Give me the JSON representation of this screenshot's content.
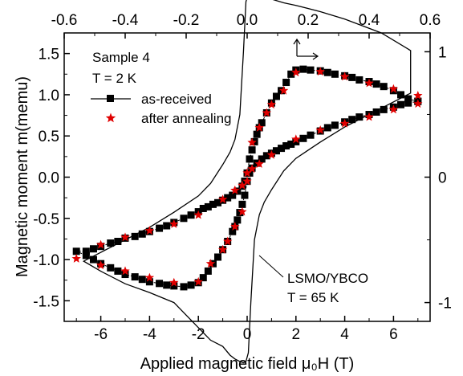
{
  "chart_data": {
    "type": "scatter",
    "xlabel": "Applied magnetic field μ₀H (T)",
    "ylabel": "Magnetic moment m(memu)",
    "xlim": [
      -7.5,
      7.5
    ],
    "ylim": [
      -1.75,
      1.75
    ],
    "x_ticks": [
      -6,
      -4,
      -2,
      0,
      2,
      4,
      6
    ],
    "x_tick_labels": [
      "-6",
      "-4",
      "-2",
      "0",
      "2",
      "4",
      "6"
    ],
    "y_ticks": [
      -1.5,
      -1.0,
      -0.5,
      0.0,
      0.5,
      1.0,
      1.5
    ],
    "y_tick_labels": [
      "-1.5",
      "-1.0",
      "-0.5",
      "0.0",
      "0.5",
      "1.0",
      "1.5"
    ],
    "top_axis": {
      "xlim": [
        -0.6,
        0.6
      ],
      "ticks": [
        -0.6,
        -0.4,
        -0.2,
        0.0,
        0.2,
        0.4,
        0.6
      ],
      "tick_labels": [
        "-0.6",
        "-0.4",
        "-0.2",
        "0.0",
        "0.2",
        "0.4",
        "0.6"
      ]
    },
    "right_axis": {
      "ylim": [
        -1.15,
        1.15
      ],
      "ticks": [
        -1,
        0,
        1
      ],
      "tick_labels": [
        "-1",
        "0",
        "1"
      ]
    },
    "annotations": {
      "sample": "Sample 4",
      "temperature": "T = 2 K",
      "lsmo_label": "LSMO/YBCO",
      "lsmo_temperature": "T = 65 K"
    },
    "legend_position": "top-left",
    "series": [
      {
        "name": "as-received",
        "marker": "square",
        "color": "#000000",
        "x": [
          7.0,
          6.6,
          6.3,
          6.0,
          5.6,
          5.3,
          5.0,
          4.6,
          4.3,
          4.0,
          3.6,
          3.3,
          3.0,
          2.6,
          2.3,
          2.0,
          1.8,
          1.6,
          1.4,
          1.2,
          1.0,
          0.8,
          0.6,
          0.5,
          0.4,
          0.3,
          0.2,
          0.1,
          0.0,
          -0.1,
          -0.2,
          -0.4,
          -0.6,
          -0.8,
          -1.0,
          -1.2,
          -1.4,
          -1.6,
          -1.8,
          -2.0,
          -2.3,
          -2.6,
          -3.0,
          -3.3,
          -3.6,
          -4.0,
          -4.3,
          -4.6,
          -5.0,
          -5.3,
          -5.6,
          -6.0,
          -6.3,
          -6.6,
          -7.0,
          -6.6,
          -6.3,
          -6.0,
          -5.6,
          -5.3,
          -5.0,
          -4.6,
          -4.3,
          -4.0,
          -3.6,
          -3.3,
          -3.0,
          -2.6,
          -2.3,
          -2.0,
          -1.8,
          -1.6,
          -1.4,
          -1.2,
          -1.0,
          -0.8,
          -0.6,
          -0.5,
          -0.4,
          -0.3,
          -0.2,
          -0.1,
          0.0,
          0.1,
          0.2,
          0.4,
          0.6,
          0.8,
          1.0,
          1.2,
          1.4,
          1.6,
          1.8,
          2.0,
          2.3,
          2.6,
          3.0,
          3.3,
          3.6,
          4.0,
          4.3,
          4.6,
          5.0,
          5.3,
          5.6,
          6.0,
          6.3,
          6.6,
          7.0
        ],
        "y": [
          0.92,
          0.95,
          1.0,
          1.05,
          1.1,
          1.13,
          1.16,
          1.18,
          1.21,
          1.23,
          1.25,
          1.27,
          1.29,
          1.3,
          1.31,
          1.3,
          1.25,
          1.15,
          1.05,
          0.98,
          0.9,
          0.78,
          0.66,
          0.6,
          0.52,
          0.43,
          0.33,
          0.22,
          0.05,
          -0.05,
          -0.11,
          -0.17,
          -0.22,
          -0.25,
          -0.28,
          -0.31,
          -0.33,
          -0.36,
          -0.38,
          -0.42,
          -0.46,
          -0.5,
          -0.55,
          -0.59,
          -0.62,
          -0.66,
          -0.69,
          -0.72,
          -0.74,
          -0.78,
          -0.8,
          -0.84,
          -0.87,
          -0.9,
          -0.9,
          -0.95,
          -1.0,
          -1.05,
          -1.1,
          -1.14,
          -1.18,
          -1.21,
          -1.24,
          -1.27,
          -1.29,
          -1.31,
          -1.32,
          -1.33,
          -1.31,
          -1.28,
          -1.22,
          -1.14,
          -1.05,
          -0.97,
          -0.88,
          -0.78,
          -0.66,
          -0.6,
          -0.52,
          -0.43,
          -0.33,
          -0.22,
          -0.05,
          0.05,
          0.11,
          0.17,
          0.22,
          0.26,
          0.29,
          0.32,
          0.35,
          0.38,
          0.4,
          0.43,
          0.47,
          0.51,
          0.56,
          0.6,
          0.63,
          0.67,
          0.7,
          0.73,
          0.76,
          0.79,
          0.82,
          0.85,
          0.88,
          0.9,
          0.92
        ]
      },
      {
        "name": "after annealing",
        "marker": "star",
        "color": "#e00000",
        "x": [
          7.0,
          6.0,
          5.0,
          4.0,
          3.0,
          2.0,
          1.5,
          1.0,
          0.8,
          0.5,
          0.2,
          0.0,
          -0.2,
          -0.5,
          -1.0,
          -2.0,
          -3.0,
          -4.0,
          -5.0,
          -6.0,
          -7.0,
          -6.0,
          -5.0,
          -4.0,
          -3.0,
          -2.0,
          -1.5,
          -1.0,
          -0.8,
          -0.5,
          -0.2,
          0.0,
          0.2,
          0.5,
          1.0,
          2.0,
          3.0,
          4.0,
          5.0,
          6.0,
          7.0
        ],
        "y": [
          0.99,
          1.07,
          1.14,
          1.22,
          1.28,
          1.27,
          1.05,
          0.88,
          0.78,
          0.6,
          0.42,
          0.05,
          -0.1,
          -0.16,
          -0.27,
          -0.46,
          -0.57,
          -0.65,
          -0.73,
          -0.82,
          -0.99,
          -1.07,
          -1.14,
          -1.22,
          -1.28,
          -1.27,
          -1.05,
          -0.88,
          -0.78,
          -0.6,
          -0.42,
          -0.05,
          0.1,
          0.16,
          0.27,
          0.46,
          0.57,
          0.65,
          0.73,
          0.82,
          0.89
        ]
      },
      {
        "name": "LSMO/YBCO",
        "style": "line",
        "color": "#000000",
        "x": [
          6.7,
          5.5,
          4.0,
          3.0,
          2.0,
          1.5,
          1.0,
          0.7,
          0.5,
          0.3,
          0.15,
          0.05,
          -0.05,
          -0.15,
          -0.3,
          -0.5,
          -0.7,
          -1.0,
          -1.5,
          -2.0,
          -3.0,
          -4.0,
          -5.5,
          -6.7,
          -6.0,
          -5.0,
          -4.0,
          -3.0,
          -2.0,
          -1.5,
          -1.0,
          -0.7,
          -0.5,
          -0.3,
          -0.15,
          -0.05,
          0.05,
          0.15,
          0.3,
          0.5,
          0.7,
          1.0,
          1.5,
          2.0,
          3.0,
          4.0,
          5.5,
          6.7
        ],
        "y": [
          1.01,
          1.15,
          1.26,
          1.32,
          1.37,
          1.39,
          1.42,
          1.45,
          1.46,
          1.48,
          1.48,
          1.46,
          1.4,
          1.0,
          0.5,
          0.3,
          0.2,
          0.1,
          -0.05,
          -0.15,
          -0.28,
          -0.4,
          -0.55,
          -0.67,
          -0.75,
          -0.85,
          -0.92,
          -1.0,
          -1.2,
          -1.3,
          -1.35,
          -1.42,
          -1.45,
          -1.47,
          -1.48,
          -1.47,
          -1.4,
          -1.0,
          -0.5,
          -0.3,
          -0.2,
          -0.1,
          0.05,
          0.15,
          0.28,
          0.4,
          0.55,
          0.67
        ]
      }
    ]
  }
}
